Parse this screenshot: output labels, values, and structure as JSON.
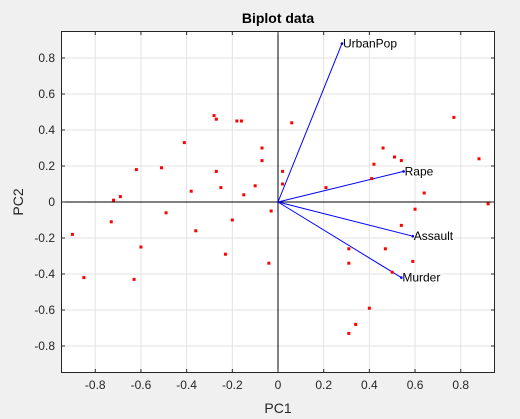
{
  "colors": {
    "figure_background": "#f0f0f0",
    "axes_background": "#ffffff",
    "grid": "#e3e3e3",
    "axis": "#262626",
    "vector": "#0000ff",
    "point": "#ff0000",
    "center_lines": "#000000"
  },
  "chart_data": {
    "type": "scatter",
    "title": "Biplot data",
    "xlabel": "PC1",
    "ylabel": "PC2",
    "xlim": [
      -0.95,
      0.95
    ],
    "ylim": [
      -0.95,
      0.95
    ],
    "grid": true,
    "xticks": [
      -0.8,
      -0.6,
      -0.4,
      -0.2,
      0,
      0.2,
      0.4,
      0.6,
      0.8
    ],
    "yticks": [
      -0.8,
      -0.6,
      -0.4,
      -0.2,
      0,
      0.2,
      0.4,
      0.6,
      0.8
    ],
    "xtick_labels": [
      "-0.8",
      "-0.6",
      "-0.4",
      "-0.2",
      "0",
      "0.2",
      "0.4",
      "0.6",
      "0.8"
    ],
    "ytick_labels": [
      "-0.8",
      "-0.6",
      "-0.4",
      "-0.2",
      "0",
      "0.2",
      "0.4",
      "0.6",
      "0.8"
    ],
    "vectors": [
      {
        "name": "UrbanPop",
        "x": 0.28,
        "y": 0.88
      },
      {
        "name": "Rape",
        "x": 0.55,
        "y": 0.17
      },
      {
        "name": "Assault",
        "x": 0.59,
        "y": -0.19
      },
      {
        "name": "Murder",
        "x": 0.54,
        "y": -0.42
      }
    ],
    "points": [
      {
        "x": -0.9,
        "y": -0.18
      },
      {
        "x": -0.85,
        "y": -0.42
      },
      {
        "x": -0.73,
        "y": -0.11
      },
      {
        "x": -0.72,
        "y": 0.01
      },
      {
        "x": -0.69,
        "y": 0.03
      },
      {
        "x": -0.63,
        "y": -0.43
      },
      {
        "x": -0.62,
        "y": 0.18
      },
      {
        "x": -0.6,
        "y": -0.25
      },
      {
        "x": -0.51,
        "y": 0.19
      },
      {
        "x": -0.49,
        "y": -0.06
      },
      {
        "x": -0.41,
        "y": 0.33
      },
      {
        "x": -0.38,
        "y": 0.06
      },
      {
        "x": -0.36,
        "y": -0.16
      },
      {
        "x": -0.28,
        "y": 0.48
      },
      {
        "x": -0.27,
        "y": 0.46
      },
      {
        "x": -0.27,
        "y": 0.17
      },
      {
        "x": -0.25,
        "y": 0.08
      },
      {
        "x": -0.23,
        "y": -0.29
      },
      {
        "x": -0.2,
        "y": -0.1
      },
      {
        "x": -0.18,
        "y": 0.45
      },
      {
        "x": -0.16,
        "y": 0.45
      },
      {
        "x": -0.15,
        "y": 0.04
      },
      {
        "x": -0.1,
        "y": 0.09
      },
      {
        "x": -0.07,
        "y": 0.3
      },
      {
        "x": -0.07,
        "y": 0.23
      },
      {
        "x": -0.04,
        "y": -0.34
      },
      {
        "x": -0.03,
        "y": -0.05
      },
      {
        "x": 0.02,
        "y": 0.17
      },
      {
        "x": 0.02,
        "y": 0.1
      },
      {
        "x": 0.06,
        "y": 0.44
      },
      {
        "x": 0.21,
        "y": 0.08
      },
      {
        "x": 0.31,
        "y": -0.26
      },
      {
        "x": 0.31,
        "y": -0.34
      },
      {
        "x": 0.31,
        "y": -0.73
      },
      {
        "x": 0.34,
        "y": -0.68
      },
      {
        "x": 0.4,
        "y": -0.59
      },
      {
        "x": 0.41,
        "y": 0.13
      },
      {
        "x": 0.42,
        "y": 0.21
      },
      {
        "x": 0.46,
        "y": 0.3
      },
      {
        "x": 0.47,
        "y": -0.26
      },
      {
        "x": 0.5,
        "y": -0.39
      },
      {
        "x": 0.51,
        "y": 0.25
      },
      {
        "x": 0.54,
        "y": 0.23
      },
      {
        "x": 0.54,
        "y": -0.13
      },
      {
        "x": 0.59,
        "y": -0.33
      },
      {
        "x": 0.6,
        "y": -0.04
      },
      {
        "x": 0.64,
        "y": 0.05
      },
      {
        "x": 0.77,
        "y": 0.47
      },
      {
        "x": 0.88,
        "y": 0.24
      },
      {
        "x": 0.92,
        "y": -0.01
      }
    ]
  }
}
